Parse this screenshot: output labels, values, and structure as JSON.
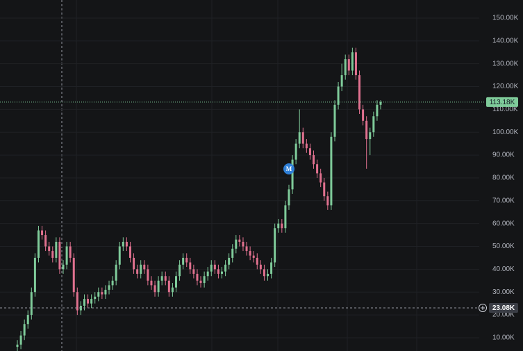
{
  "chart_data": {
    "type": "candlestick",
    "open": [
      6,
      7,
      11,
      16,
      20,
      30,
      45,
      57,
      55,
      50,
      48,
      45,
      52,
      40,
      42,
      50,
      45,
      30,
      22,
      24,
      27,
      25,
      27,
      28,
      30,
      29,
      31,
      33,
      35,
      42,
      50,
      52,
      50,
      45,
      40,
      38,
      42,
      40,
      35,
      33,
      30,
      35,
      37,
      35,
      30,
      32,
      37,
      42,
      45,
      43,
      40,
      38,
      35,
      34,
      37,
      39,
      42,
      40,
      38,
      39,
      42,
      45,
      49,
      53,
      52,
      50,
      48,
      46,
      45,
      42,
      40,
      37,
      38,
      43,
      58,
      60,
      58,
      68,
      75,
      88,
      95,
      100,
      95,
      93,
      90,
      86,
      82,
      78,
      72,
      68,
      98,
      112,
      120,
      125,
      132,
      127,
      135,
      125,
      110,
      105,
      97,
      100,
      107,
      112
    ],
    "high": [
      9,
      13,
      18,
      22,
      32,
      47,
      59,
      59,
      57,
      52,
      50,
      54,
      54,
      44,
      52,
      52,
      47,
      32,
      26,
      29,
      29,
      29,
      30,
      32,
      32,
      33,
      35,
      37,
      44,
      52,
      54,
      54,
      52,
      47,
      42,
      44,
      44,
      42,
      37,
      35,
      37,
      39,
      39,
      37,
      34,
      39,
      44,
      47,
      47,
      45,
      42,
      40,
      37,
      39,
      41,
      44,
      44,
      42,
      41,
      44,
      47,
      51,
      55,
      55,
      54,
      52,
      50,
      48,
      47,
      44,
      42,
      40,
      45,
      60,
      62,
      62,
      70,
      77,
      90,
      97,
      110,
      102,
      97,
      95,
      92,
      88,
      84,
      80,
      74,
      100,
      114,
      122,
      130,
      134,
      134,
      137,
      137,
      127,
      112,
      107,
      102,
      109,
      114,
      114
    ],
    "low": [
      4,
      5,
      9,
      14,
      18,
      28,
      43,
      53,
      48,
      46,
      43,
      43,
      38,
      38,
      40,
      43,
      28,
      20,
      20,
      22,
      23,
      23,
      25,
      26,
      27,
      27,
      29,
      31,
      33,
      40,
      48,
      48,
      43,
      38,
      36,
      36,
      38,
      33,
      31,
      28,
      28,
      33,
      33,
      28,
      28,
      30,
      35,
      40,
      41,
      38,
      36,
      33,
      32,
      32,
      35,
      37,
      38,
      36,
      36,
      37,
      40,
      43,
      47,
      50,
      48,
      46,
      44,
      43,
      40,
      38,
      35,
      35,
      36,
      41,
      56,
      56,
      56,
      66,
      73,
      86,
      93,
      93,
      91,
      88,
      84,
      80,
      76,
      70,
      66,
      66,
      96,
      110,
      118,
      123,
      125,
      125,
      123,
      108,
      103,
      84,
      90,
      98,
      105,
      110
    ],
    "close": [
      7,
      11,
      16,
      20,
      30,
      45,
      57,
      55,
      50,
      48,
      45,
      52,
      40,
      42,
      50,
      45,
      30,
      22,
      24,
      27,
      25,
      27,
      28,
      30,
      29,
      31,
      33,
      35,
      42,
      50,
      52,
      50,
      45,
      40,
      38,
      42,
      40,
      35,
      33,
      30,
      35,
      37,
      35,
      30,
      32,
      37,
      42,
      45,
      43,
      40,
      38,
      35,
      34,
      37,
      39,
      42,
      40,
      38,
      39,
      42,
      45,
      49,
      53,
      52,
      50,
      48,
      46,
      45,
      42,
      40,
      37,
      38,
      43,
      58,
      60,
      58,
      68,
      75,
      88,
      95,
      100,
      95,
      93,
      90,
      86,
      82,
      78,
      72,
      68,
      98,
      112,
      120,
      125,
      132,
      127,
      135,
      125,
      110,
      105,
      97,
      100,
      107,
      112,
      113.18
    ],
    "up_color": "#7fcb9a",
    "down_color": "#e0718f",
    "ylim": [
      4.2,
      157.9
    ],
    "yticks": [
      {
        "value": 10,
        "label": "10.00K"
      },
      {
        "value": 20,
        "label": "20.00K"
      },
      {
        "value": 30,
        "label": "30.00K"
      },
      {
        "value": 40,
        "label": "40.00K"
      },
      {
        "value": 50,
        "label": "50.00K"
      },
      {
        "value": 60,
        "label": "60.00K"
      },
      {
        "value": 70,
        "label": "70.00K"
      },
      {
        "value": 80,
        "label": "80.00K"
      },
      {
        "value": 90,
        "label": "90.00K"
      },
      {
        "value": 100,
        "label": "100.00K"
      },
      {
        "value": 110,
        "label": "110.00K"
      },
      {
        "value": 120,
        "label": "120.00K"
      },
      {
        "value": 130,
        "label": "130.00K"
      },
      {
        "value": 140,
        "label": "140.00K"
      },
      {
        "value": 150,
        "label": "150.00K"
      }
    ],
    "grid": true,
    "last_price": {
      "value": 113.18,
      "label": "113.18K"
    },
    "crosshair": {
      "value": 23.08,
      "label": "23.08K"
    },
    "marker": {
      "label": "M"
    }
  }
}
